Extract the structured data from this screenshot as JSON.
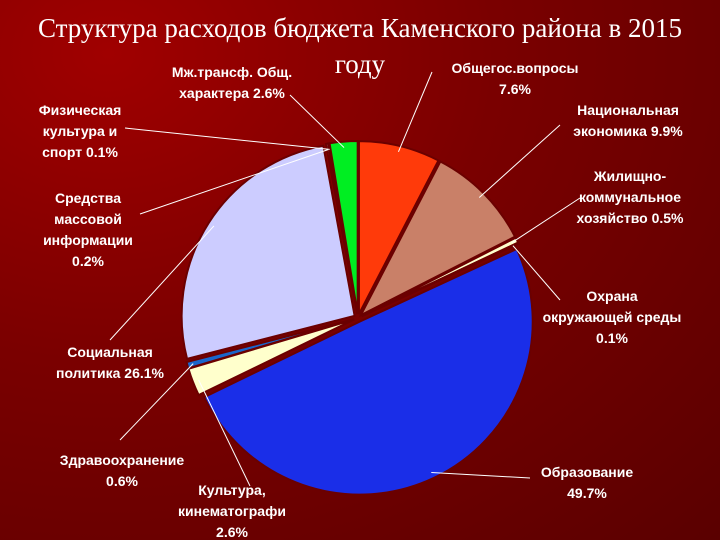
{
  "chart_data": {
    "type": "pie",
    "title": "Структура расходов бюджета Каменского района в 2015 году",
    "categories": [
      "Общегос.вопросы",
      "Национальная экономика",
      "Жилищно-коммунальное хозяйство",
      "Охрана окружающей среды",
      "Образование",
      "Культура, кинематографи",
      "Здравоохранение",
      "Социальная политика",
      "Средства массовой информации",
      "Физическая культура и спорт",
      "Мж.трансф. Общ. характера"
    ],
    "values": [
      7.6,
      9.9,
      0.5,
      0.1,
      49.7,
      2.6,
      0.6,
      26.1,
      0.2,
      0.1,
      2.6
    ],
    "value_labels": [
      "7.6%",
      "9.9%",
      "0.5%",
      "0.1%",
      "49.7%",
      "2.6%",
      "0.6%",
      "26.1%",
      "0.2%",
      "0.1%",
      "2.6%"
    ],
    "colors": [
      "#ff3a0a",
      "#c98068",
      "#ffffcc",
      "#ffffcc",
      "#1a2ee8",
      "#ffffcc",
      "#1a66cc",
      "#ccccff",
      "#ccccff",
      "#ffffcc",
      "#00ee22"
    ]
  }
}
